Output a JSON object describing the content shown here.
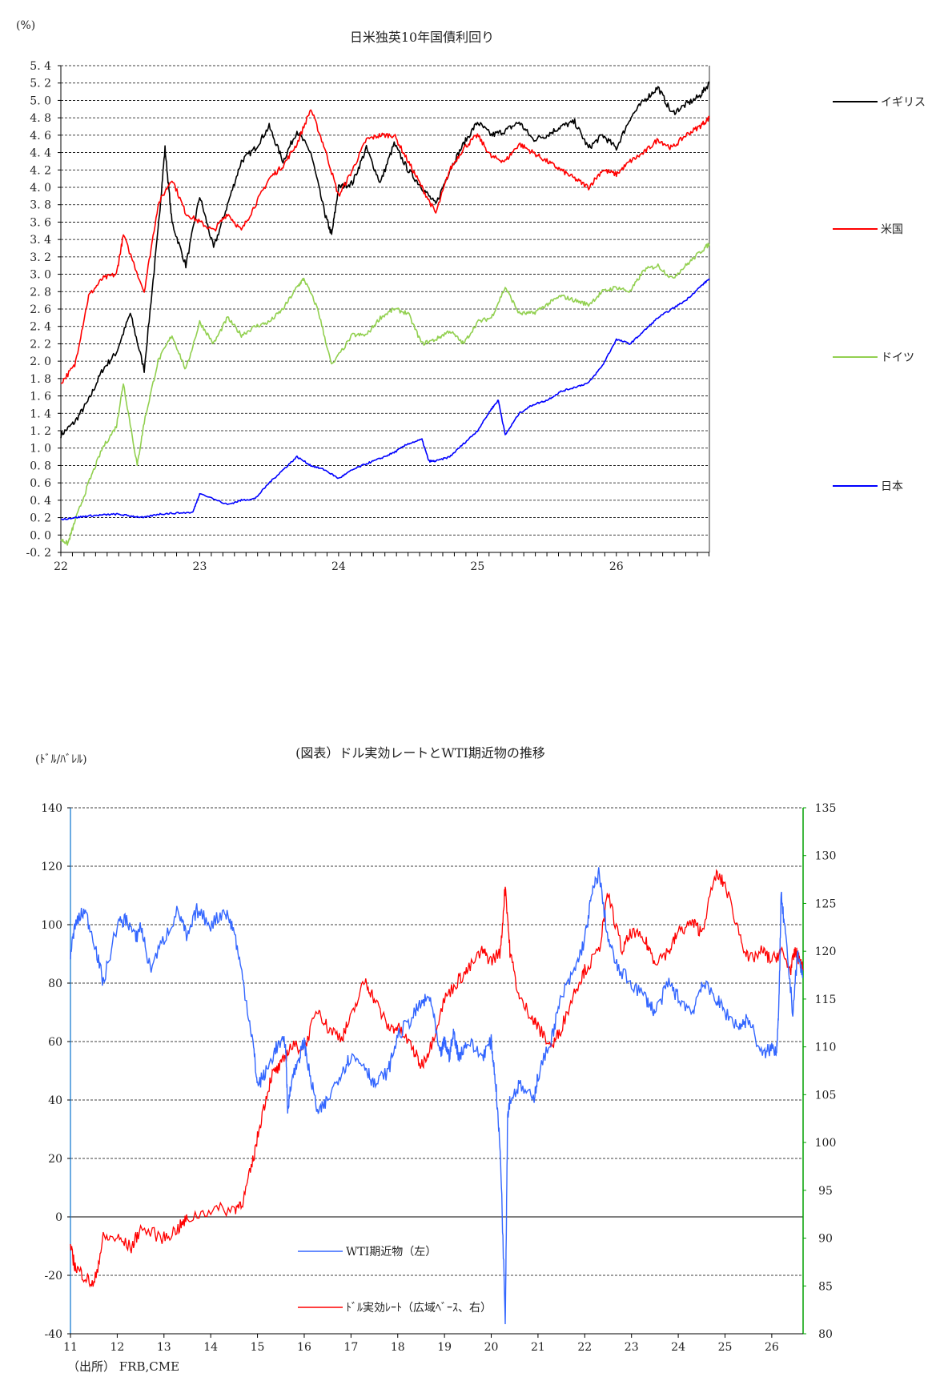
{
  "chart_data": [
    {
      "type": "line",
      "title": "日米独英10年国債利回り",
      "ylabel": "(%)",
      "ylim": [
        -0.2,
        5.4
      ],
      "yticks": [
        -0.2,
        0.0,
        0.2,
        0.4,
        0.6,
        0.8,
        1.0,
        1.2,
        1.4,
        1.6,
        1.8,
        2.0,
        2.2,
        2.4,
        2.6,
        2.8,
        3.0,
        3.2,
        3.4,
        3.6,
        3.8,
        4.0,
        4.2,
        4.4,
        4.6,
        4.8,
        5.0,
        5.2,
        5.4
      ],
      "xticks": [
        "22",
        "23",
        "24",
        "25",
        "26"
      ],
      "xlim": [
        22,
        26.67
      ],
      "grid": true,
      "series": [
        {
          "name": "イギリス",
          "color": "#000000",
          "x": [
            22.0,
            22.1,
            22.2,
            22.3,
            22.4,
            22.5,
            22.6,
            22.7,
            22.75,
            22.8,
            22.9,
            23.0,
            23.1,
            23.2,
            23.3,
            23.4,
            23.5,
            23.6,
            23.7,
            23.8,
            23.9,
            23.95,
            24.0,
            24.1,
            24.2,
            24.3,
            24.4,
            24.5,
            24.6,
            24.7,
            24.8,
            24.9,
            25.0,
            25.1,
            25.2,
            25.3,
            25.4,
            25.5,
            25.6,
            25.7,
            25.8,
            25.9,
            26.0,
            26.1,
            26.2,
            26.3,
            26.4,
            26.5,
            26.6,
            26.67
          ],
          "y": [
            1.15,
            1.3,
            1.55,
            1.9,
            2.1,
            2.55,
            1.9,
            3.5,
            4.45,
            3.6,
            3.1,
            3.9,
            3.3,
            3.8,
            4.3,
            4.45,
            4.7,
            4.3,
            4.65,
            4.4,
            3.7,
            3.45,
            4.0,
            4.05,
            4.45,
            4.05,
            4.5,
            4.2,
            4.0,
            3.8,
            4.2,
            4.5,
            4.75,
            4.6,
            4.65,
            4.75,
            4.55,
            4.6,
            4.7,
            4.75,
            4.45,
            4.6,
            4.45,
            4.8,
            5.0,
            5.15,
            4.85,
            4.95,
            5.05,
            5.2
          ]
        },
        {
          "name": "米国",
          "color": "#ff0000",
          "x": [
            22.0,
            22.1,
            22.2,
            22.3,
            22.4,
            22.45,
            22.6,
            22.7,
            22.8,
            22.9,
            23.0,
            23.1,
            23.2,
            23.3,
            23.4,
            23.5,
            23.6,
            23.7,
            23.8,
            23.9,
            24.0,
            24.1,
            24.2,
            24.3,
            24.4,
            24.5,
            24.6,
            24.7,
            24.8,
            24.9,
            25.0,
            25.1,
            25.2,
            25.3,
            25.4,
            25.5,
            25.6,
            25.7,
            25.8,
            25.9,
            26.0,
            26.1,
            26.2,
            26.3,
            26.4,
            26.5,
            26.6,
            26.67
          ],
          "y": [
            1.75,
            1.95,
            2.75,
            2.95,
            3.0,
            3.45,
            2.8,
            3.8,
            4.1,
            3.7,
            3.6,
            3.5,
            3.7,
            3.5,
            3.8,
            4.1,
            4.25,
            4.5,
            4.9,
            4.45,
            3.9,
            4.2,
            4.55,
            4.6,
            4.6,
            4.3,
            4.0,
            3.7,
            4.2,
            4.45,
            4.6,
            4.35,
            4.3,
            4.5,
            4.4,
            4.3,
            4.2,
            4.1,
            4.0,
            4.2,
            4.15,
            4.3,
            4.4,
            4.55,
            4.45,
            4.6,
            4.7,
            4.8
          ]
        },
        {
          "name": "ドイツ",
          "color": "#92d050",
          "x": [
            22.0,
            22.05,
            22.1,
            22.2,
            22.3,
            22.4,
            22.45,
            22.55,
            22.6,
            22.7,
            22.8,
            22.9,
            23.0,
            23.1,
            23.2,
            23.3,
            23.4,
            23.5,
            23.6,
            23.7,
            23.75,
            23.85,
            23.95,
            24.1,
            24.2,
            24.3,
            24.4,
            24.5,
            24.6,
            24.7,
            24.8,
            24.9,
            25.0,
            25.1,
            25.2,
            25.3,
            25.4,
            25.5,
            25.6,
            25.7,
            25.8,
            25.9,
            26.0,
            26.1,
            26.2,
            26.3,
            26.4,
            26.5,
            26.6,
            26.67
          ],
          "y": [
            -0.05,
            -0.1,
            0.15,
            0.6,
            1.0,
            1.25,
            1.75,
            0.8,
            1.3,
            2.0,
            2.3,
            1.9,
            2.45,
            2.2,
            2.5,
            2.3,
            2.4,
            2.45,
            2.6,
            2.85,
            2.95,
            2.6,
            1.95,
            2.3,
            2.3,
            2.5,
            2.6,
            2.55,
            2.2,
            2.25,
            2.35,
            2.2,
            2.45,
            2.5,
            2.85,
            2.55,
            2.55,
            2.65,
            2.75,
            2.7,
            2.65,
            2.8,
            2.85,
            2.8,
            3.05,
            3.1,
            2.95,
            3.1,
            3.25,
            3.35
          ]
        },
        {
          "name": "日本",
          "color": "#0000ff",
          "x": [
            22.0,
            22.1,
            22.2,
            22.3,
            22.4,
            22.5,
            22.6,
            22.7,
            22.8,
            22.95,
            23.0,
            23.2,
            23.3,
            23.4,
            23.5,
            23.6,
            23.7,
            23.8,
            23.9,
            24.0,
            24.1,
            24.2,
            24.3,
            24.4,
            24.5,
            24.6,
            24.65,
            24.7,
            24.8,
            24.9,
            25.0,
            25.1,
            25.15,
            25.2,
            25.3,
            25.4,
            25.5,
            25.6,
            25.7,
            25.8,
            25.9,
            26.0,
            26.1,
            26.2,
            26.3,
            26.4,
            26.5,
            26.6,
            26.67
          ],
          "y": [
            0.18,
            0.2,
            0.22,
            0.23,
            0.24,
            0.22,
            0.2,
            0.24,
            0.25,
            0.26,
            0.48,
            0.35,
            0.4,
            0.42,
            0.6,
            0.75,
            0.9,
            0.8,
            0.75,
            0.65,
            0.75,
            0.82,
            0.88,
            0.95,
            1.05,
            1.1,
            0.85,
            0.85,
            0.9,
            1.05,
            1.2,
            1.45,
            1.55,
            1.15,
            1.4,
            1.5,
            1.55,
            1.65,
            1.7,
            1.75,
            1.95,
            2.25,
            2.2,
            2.35,
            2.5,
            2.6,
            2.7,
            2.85,
            2.95
          ]
        }
      ]
    },
    {
      "type": "line",
      "title": "(図表）ドル実効レートとWTI期近物の推移",
      "ylabel": "(ﾄﾞﾙ/ﾊﾞﾚﾙ)",
      "ylim": [
        -40,
        140
      ],
      "yticks": [
        -40,
        -20,
        0,
        20,
        40,
        60,
        80,
        100,
        120,
        140
      ],
      "y2lim": [
        80,
        135
      ],
      "y2ticks": [
        80,
        85,
        90,
        95,
        100,
        105,
        110,
        115,
        120,
        125,
        130,
        135
      ],
      "xticks": [
        "11",
        "12",
        "13",
        "14",
        "15",
        "16",
        "17",
        "18",
        "19",
        "20",
        "21",
        "22",
        "23",
        "24",
        "25",
        "26"
      ],
      "xlim": [
        11,
        26.67
      ],
      "grid": true,
      "series": [
        {
          "name": "WTI期近物（左）",
          "color": "#3366ff",
          "axis": "left",
          "x": [
            11.0,
            11.1,
            11.3,
            11.5,
            11.7,
            12.0,
            12.2,
            12.4,
            12.5,
            12.7,
            13.0,
            13.3,
            13.5,
            13.7,
            14.0,
            14.3,
            14.5,
            14.7,
            14.9,
            15.0,
            15.2,
            15.4,
            15.6,
            15.65,
            15.7,
            15.9,
            16.0,
            16.1,
            16.3,
            16.5,
            16.8,
            17.0,
            17.3,
            17.5,
            17.8,
            18.0,
            18.3,
            18.5,
            18.7,
            18.9,
            19.0,
            19.1,
            19.2,
            19.3,
            19.5,
            19.8,
            20.0,
            20.1,
            20.2,
            20.3,
            20.35,
            20.4,
            20.6,
            20.9,
            21.0,
            21.3,
            21.5,
            21.8,
            22.0,
            22.15,
            22.3,
            22.5,
            22.7,
            23.0,
            23.3,
            23.5,
            23.8,
            24.0,
            24.3,
            24.5,
            24.8,
            25.0,
            25.3,
            25.5,
            25.8,
            26.0,
            26.1,
            26.15,
            26.2,
            26.3,
            26.45,
            26.55,
            26.67
          ],
          "y": [
            90,
            100,
            105,
            95,
            80,
            100,
            102,
            95,
            100,
            85,
            95,
            105,
            95,
            105,
            100,
            105,
            98,
            80,
            60,
            45,
            50,
            58,
            60,
            35,
            45,
            55,
            60,
            50,
            35,
            40,
            50,
            55,
            52,
            45,
            50,
            62,
            68,
            73,
            75,
            55,
            60,
            55,
            63,
            55,
            60,
            55,
            60,
            45,
            20,
            -35,
            35,
            40,
            45,
            40,
            48,
            62,
            75,
            85,
            95,
            110,
            118,
            95,
            85,
            80,
            75,
            70,
            80,
            75,
            70,
            80,
            75,
            70,
            65,
            68,
            55,
            58,
            57,
            70,
            110,
            95,
            70,
            90,
            82
          ]
        },
        {
          "name": "ﾄﾞﾙ実効ﾚｰﾄ（広域ﾍﾞｰｽ、右）",
          "color": "#ff0000",
          "axis": "right",
          "x": [
            11.0,
            11.1,
            11.3,
            11.5,
            11.7,
            12.0,
            12.3,
            12.5,
            13.0,
            13.3,
            13.5,
            14.0,
            14.5,
            14.7,
            14.9,
            15.1,
            15.3,
            15.5,
            15.7,
            16.0,
            16.3,
            16.5,
            16.8,
            17.0,
            17.3,
            17.5,
            17.8,
            18.0,
            18.3,
            18.5,
            18.7,
            19.0,
            19.3,
            19.5,
            19.8,
            20.0,
            20.2,
            20.3,
            20.4,
            20.6,
            20.9,
            21.0,
            21.3,
            21.5,
            21.8,
            22.0,
            22.3,
            22.5,
            22.8,
            23.0,
            23.3,
            23.5,
            23.8,
            24.0,
            24.3,
            24.5,
            24.8,
            25.0,
            25.3,
            25.5,
            25.8,
            26.0,
            26.2,
            26.4,
            26.5,
            26.6,
            26.67
          ],
          "y": [
            89,
            87,
            86,
            85,
            90,
            90,
            89,
            91,
            90,
            91,
            92,
            93,
            93,
            94,
            98,
            103,
            107,
            108,
            110,
            110,
            114,
            112,
            111,
            113,
            117,
            115,
            112,
            112,
            110,
            108,
            110,
            115,
            117,
            118,
            120,
            119,
            120,
            127,
            120,
            115,
            113,
            112,
            110,
            112,
            116,
            118,
            120,
            126,
            120,
            122,
            121,
            119,
            120,
            122,
            123,
            122,
            128,
            127,
            122,
            119,
            120,
            119,
            120,
            118,
            120,
            119,
            118
          ]
        }
      ]
    }
  ],
  "legend1": {
    "uk": "イギリス",
    "us": "米国",
    "de": "ドイツ",
    "jp": "日本"
  },
  "legend2": {
    "wti": "WTI期近物（左）",
    "usd": "ﾄﾞﾙ実効ﾚｰﾄ（広域ﾍﾞｰｽ、右）"
  },
  "source": "（出所） FRB,CME",
  "colors": {
    "grid": "#000000",
    "axis2": "#00a000"
  }
}
